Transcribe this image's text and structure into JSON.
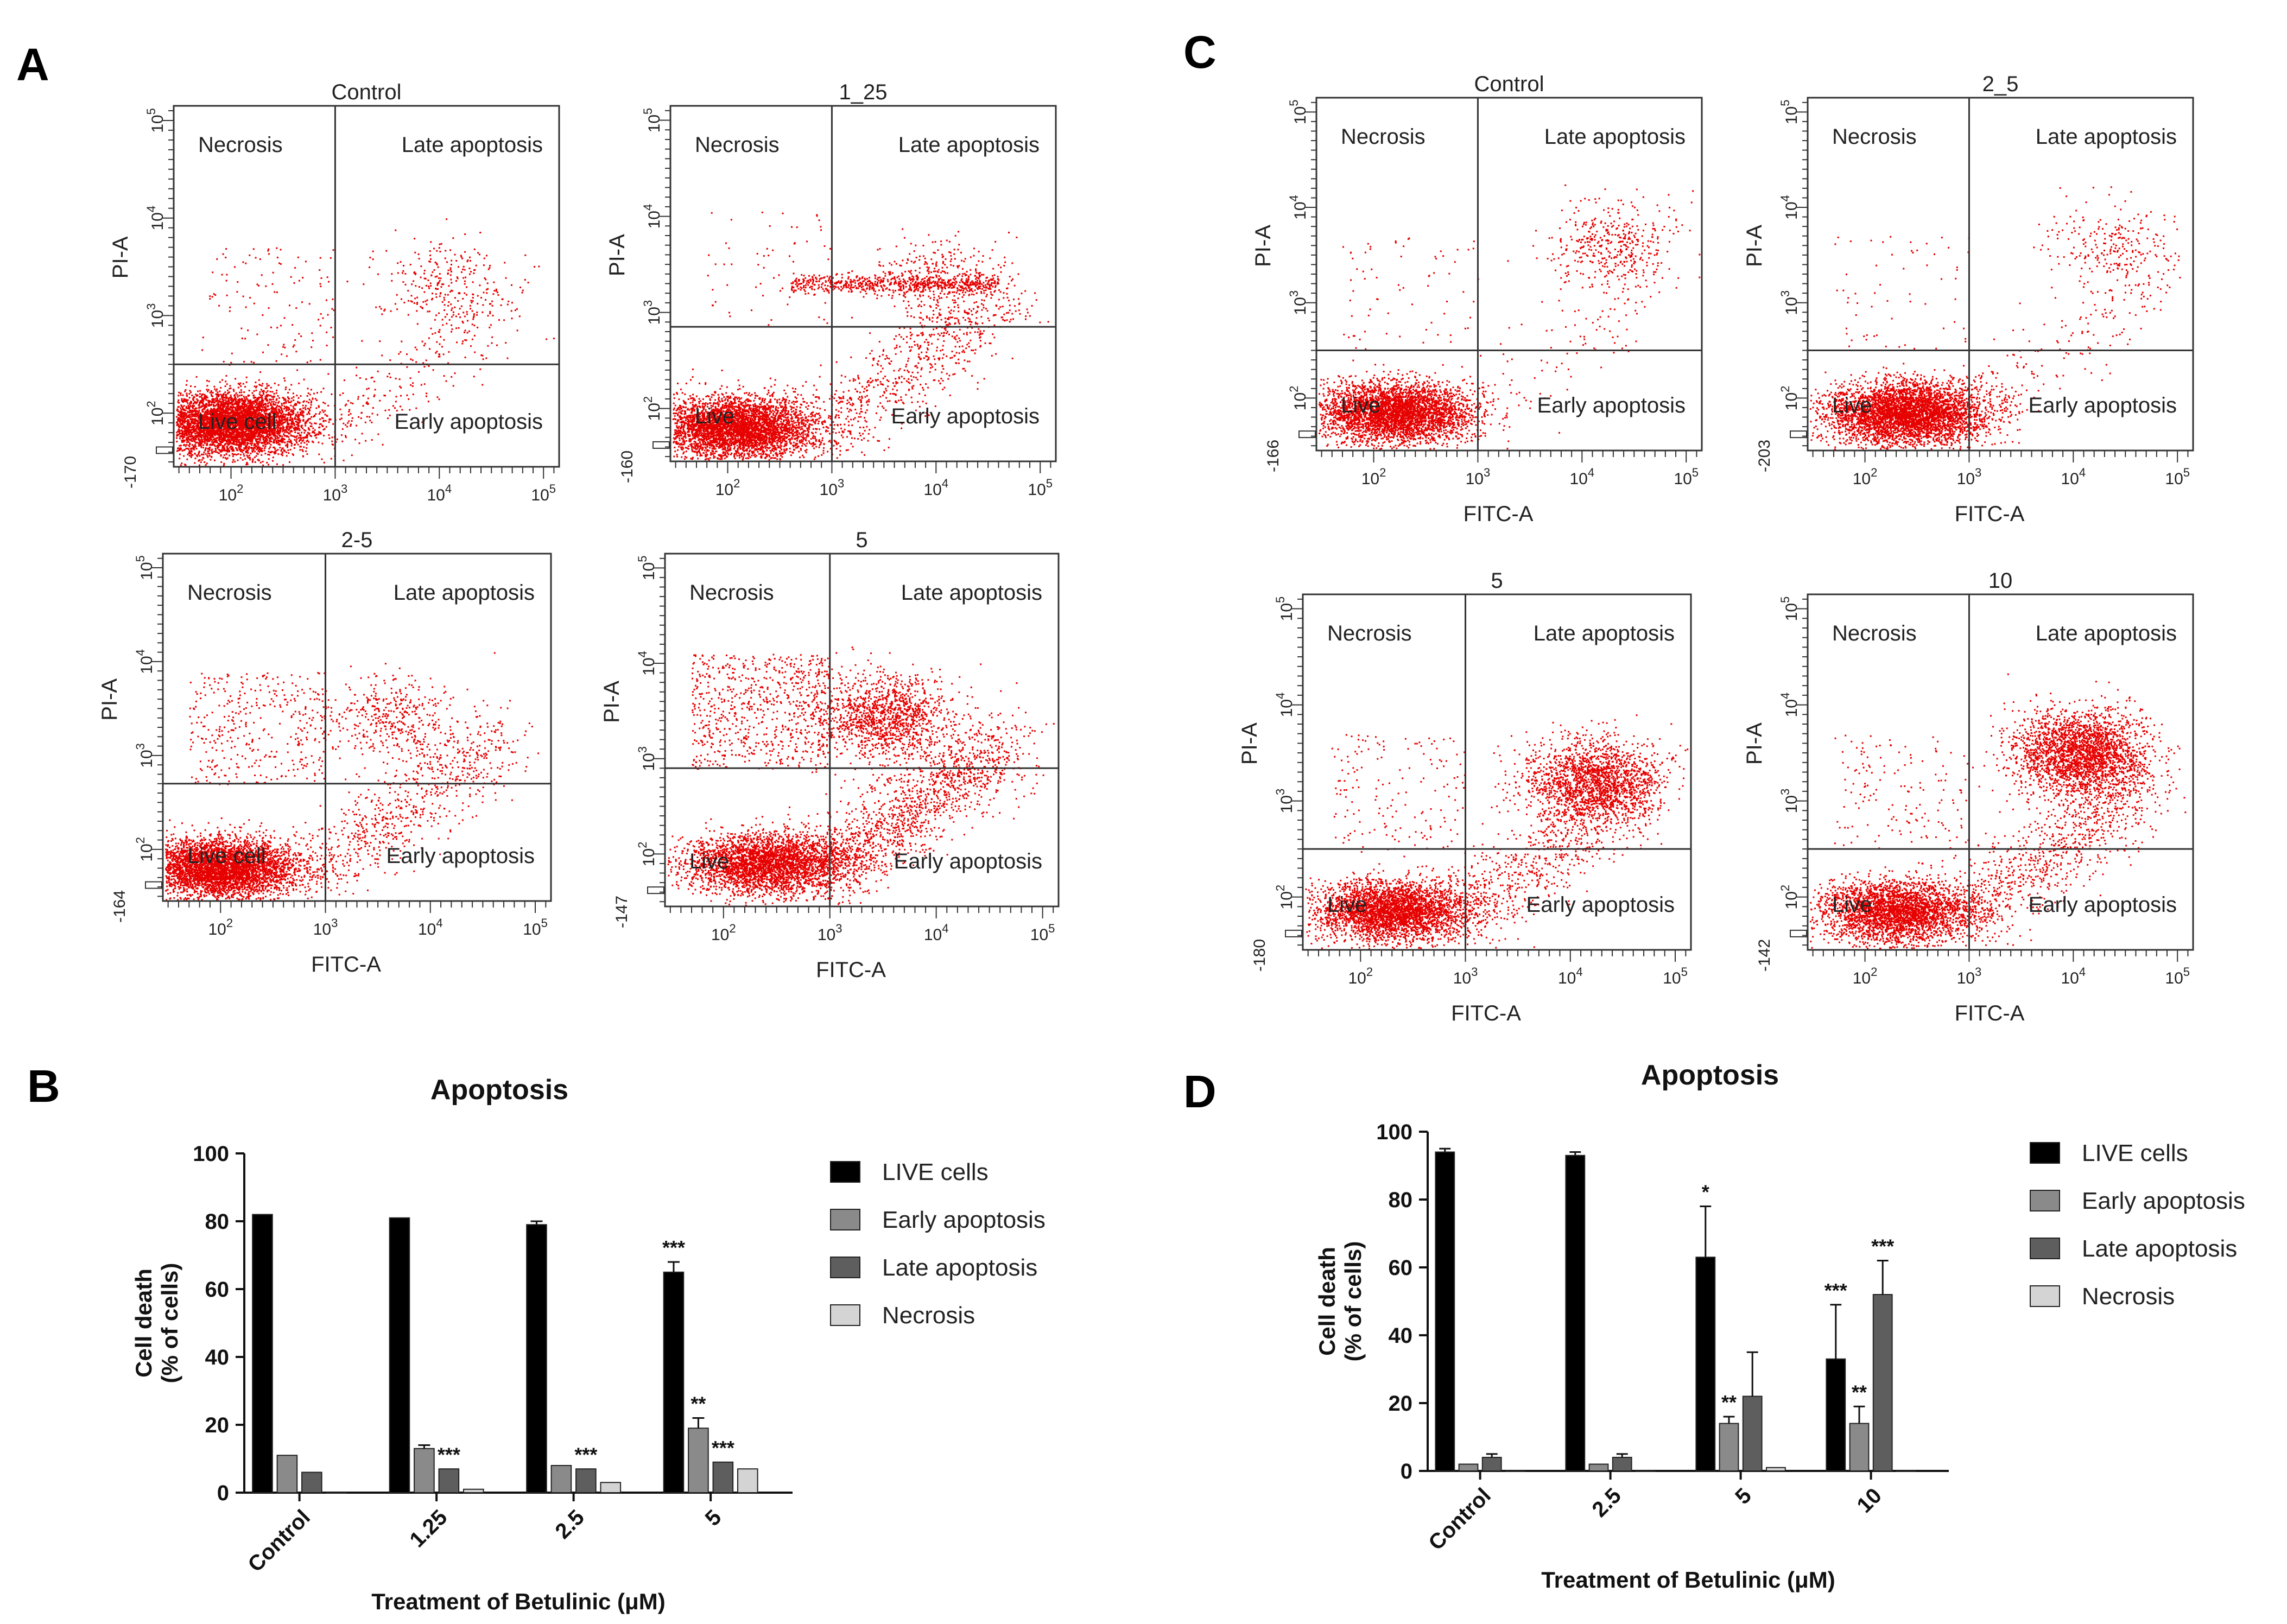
{
  "panels": {
    "A": "A",
    "B": "B",
    "C": "C",
    "D": "D"
  },
  "quadrant_labels": {
    "necrosis": "Necrosis",
    "late": "Late apoptosis",
    "early": "Early apoptosis"
  },
  "flow_axes": {
    "x": "FITC-A",
    "y": "PI-A",
    "x_ticks": [
      "10^2",
      "10^3",
      "10^4",
      "10^5"
    ],
    "y_ticks": [
      "10^2",
      "10^3",
      "10^4",
      "10^5"
    ],
    "x_tick_values": [
      2,
      3,
      4,
      5
    ],
    "y_tick_values": [
      2,
      3,
      4,
      5
    ]
  },
  "colors": {
    "dots": "#e60000",
    "live": "#000000",
    "early": "#8a8a8a",
    "late": "#5e5e5e",
    "necrosis": "#d4d4d4"
  },
  "flow_plots": [
    {
      "id": "A-control",
      "title": "Control",
      "live_label": "Live cell",
      "y_min_label": "-170",
      "gate": {
        "x": 3.0,
        "y": 2.5
      },
      "show_xlabel": false,
      "pattern": {
        "live": [
          2.0,
          1.9,
          5200
        ],
        "late": [
          4.0,
          3.35,
          260
        ],
        "early": 260,
        "necrosis": 120,
        "band": null
      }
    },
    {
      "id": "A-1.25",
      "title": "1_25",
      "live_label": "Live",
      "y_min_label": "-160",
      "gate": {
        "x": 3.0,
        "y": 2.85
      },
      "show_xlabel": false,
      "pattern": {
        "live": [
          2.1,
          1.8,
          4200
        ],
        "late": [
          4.0,
          3.35,
          320
        ],
        "early": 700,
        "necrosis": 60,
        "band": [
          2.6,
          4.6,
          3.3,
          620
        ]
      }
    },
    {
      "id": "A-2-5",
      "title": "2-5",
      "live_label": "Live cell",
      "y_min_label": "-164",
      "gate": {
        "x": 3.0,
        "y": 2.7
      },
      "show_xlabel": true,
      "pattern": {
        "live": [
          2.0,
          1.8,
          4300
        ],
        "late": [
          3.6,
          3.4,
          420
        ],
        "early": 700,
        "necrosis": 360,
        "band": null
      }
    },
    {
      "id": "A-5",
      "title": "5",
      "live_label": "Live",
      "y_min_label": "-147",
      "gate": {
        "x": 3.0,
        "y": 2.9
      },
      "show_xlabel": true,
      "pattern": {
        "live": [
          2.4,
          1.9,
          3200
        ],
        "late": [
          3.5,
          3.45,
          1300
        ],
        "early": 1400,
        "necrosis": 700,
        "band": null
      }
    },
    {
      "id": "C-control",
      "title": "Control",
      "live_label": "Live",
      "y_min_label": "-166",
      "gate": {
        "x": 3.0,
        "y": 2.5
      },
      "show_xlabel": true,
      "pattern": {
        "live": [
          2.2,
          1.85,
          3800
        ],
        "late": [
          4.3,
          3.6,
          420
        ],
        "early": 120,
        "necrosis": 70,
        "band": null
      }
    },
    {
      "id": "C-2.5",
      "title": "2_5",
      "live_label": "Live",
      "y_min_label": "-203",
      "gate": {
        "x": 3.0,
        "y": 2.5
      },
      "show_xlabel": true,
      "pattern": {
        "live": [
          2.4,
          1.85,
          4200
        ],
        "late": [
          4.4,
          3.55,
          260
        ],
        "early": 180,
        "necrosis": 60,
        "band": null
      }
    },
    {
      "id": "C-5",
      "title": "5",
      "live_label": "Live",
      "y_min_label": "-180",
      "gate": {
        "x": 3.0,
        "y": 2.5
      },
      "show_xlabel": true,
      "pattern": {
        "live": [
          2.3,
          1.85,
          3200
        ],
        "late": [
          4.2,
          3.2,
          1800
        ],
        "early": 700,
        "necrosis": 160,
        "band": null
      }
    },
    {
      "id": "C-10",
      "title": "10",
      "live_label": "Live",
      "y_min_label": "-142",
      "gate": {
        "x": 3.0,
        "y": 2.5
      },
      "show_xlabel": true,
      "pattern": {
        "live": [
          2.3,
          1.85,
          3000
        ],
        "late": [
          4.05,
          3.5,
          2400
        ],
        "early": 900,
        "necrosis": 150,
        "band": null
      }
    }
  ],
  "chart_data": [
    {
      "id": "B",
      "type": "bar",
      "title": "Apoptosis",
      "xlabel": "Treatment of Betulinic (μM)",
      "ylabel_line1": "Cell death",
      "ylabel_line2": "(% of cells)",
      "ylim": [
        0,
        100
      ],
      "yticks": [
        0,
        20,
        40,
        60,
        80,
        100
      ],
      "categories": [
        "Control",
        "1.25",
        "2.5",
        "5"
      ],
      "series": [
        {
          "name": "LIVE cells",
          "values": [
            82,
            81,
            79,
            65
          ],
          "errors": [
            0,
            0,
            1,
            3
          ]
        },
        {
          "name": "Early apoptosis",
          "values": [
            11,
            13,
            8,
            19
          ],
          "errors": [
            0,
            1,
            0,
            3
          ]
        },
        {
          "name": "Late apoptosis",
          "values": [
            6,
            7,
            7,
            9
          ],
          "errors": [
            0,
            0,
            0,
            0
          ]
        },
        {
          "name": "Necrosis",
          "values": [
            0,
            1,
            3,
            7
          ],
          "errors": [
            0,
            0,
            0,
            0
          ]
        }
      ],
      "annotations": [
        {
          "category": 1,
          "series": 2,
          "text": "***"
        },
        {
          "category": 2,
          "series": 2,
          "text": "***"
        },
        {
          "category": 3,
          "series": 0,
          "text": "***"
        },
        {
          "category": 3,
          "series": 1,
          "text": "**"
        },
        {
          "category": 3,
          "series": 2,
          "text": "***"
        }
      ],
      "legend": [
        "LIVE cells",
        "Early apoptosis",
        "Late apoptosis",
        "Necrosis"
      ]
    },
    {
      "id": "D",
      "type": "bar",
      "title": "Apoptosis",
      "xlabel": "Treatment of Betulinic (μM)",
      "ylabel_line1": "Cell death",
      "ylabel_line2": "(% of cells)",
      "ylim": [
        0,
        100
      ],
      "yticks": [
        0,
        20,
        40,
        60,
        80,
        100
      ],
      "categories": [
        "Control",
        "2.5",
        "5",
        "10"
      ],
      "series": [
        {
          "name": "LIVE cells",
          "values": [
            94,
            93,
            63,
            33
          ],
          "errors": [
            1,
            1,
            15,
            16
          ]
        },
        {
          "name": "Early apoptosis",
          "values": [
            2,
            2,
            14,
            14
          ],
          "errors": [
            0,
            0,
            2,
            5
          ]
        },
        {
          "name": "Late apoptosis",
          "values": [
            4,
            4,
            22,
            52
          ],
          "errors": [
            1,
            1,
            13,
            10
          ]
        },
        {
          "name": "Necrosis",
          "values": [
            0,
            0,
            1,
            0
          ],
          "errors": [
            0,
            0,
            0,
            0
          ]
        }
      ],
      "annotations": [
        {
          "category": 2,
          "series": 0,
          "text": "*"
        },
        {
          "category": 2,
          "series": 1,
          "text": "**"
        },
        {
          "category": 3,
          "series": 0,
          "text": "***"
        },
        {
          "category": 3,
          "series": 1,
          "text": "**"
        },
        {
          "category": 3,
          "series": 2,
          "text": "***"
        }
      ],
      "legend": [
        "LIVE cells",
        "Early apoptosis",
        "Late apoptosis",
        "Necrosis"
      ]
    }
  ]
}
